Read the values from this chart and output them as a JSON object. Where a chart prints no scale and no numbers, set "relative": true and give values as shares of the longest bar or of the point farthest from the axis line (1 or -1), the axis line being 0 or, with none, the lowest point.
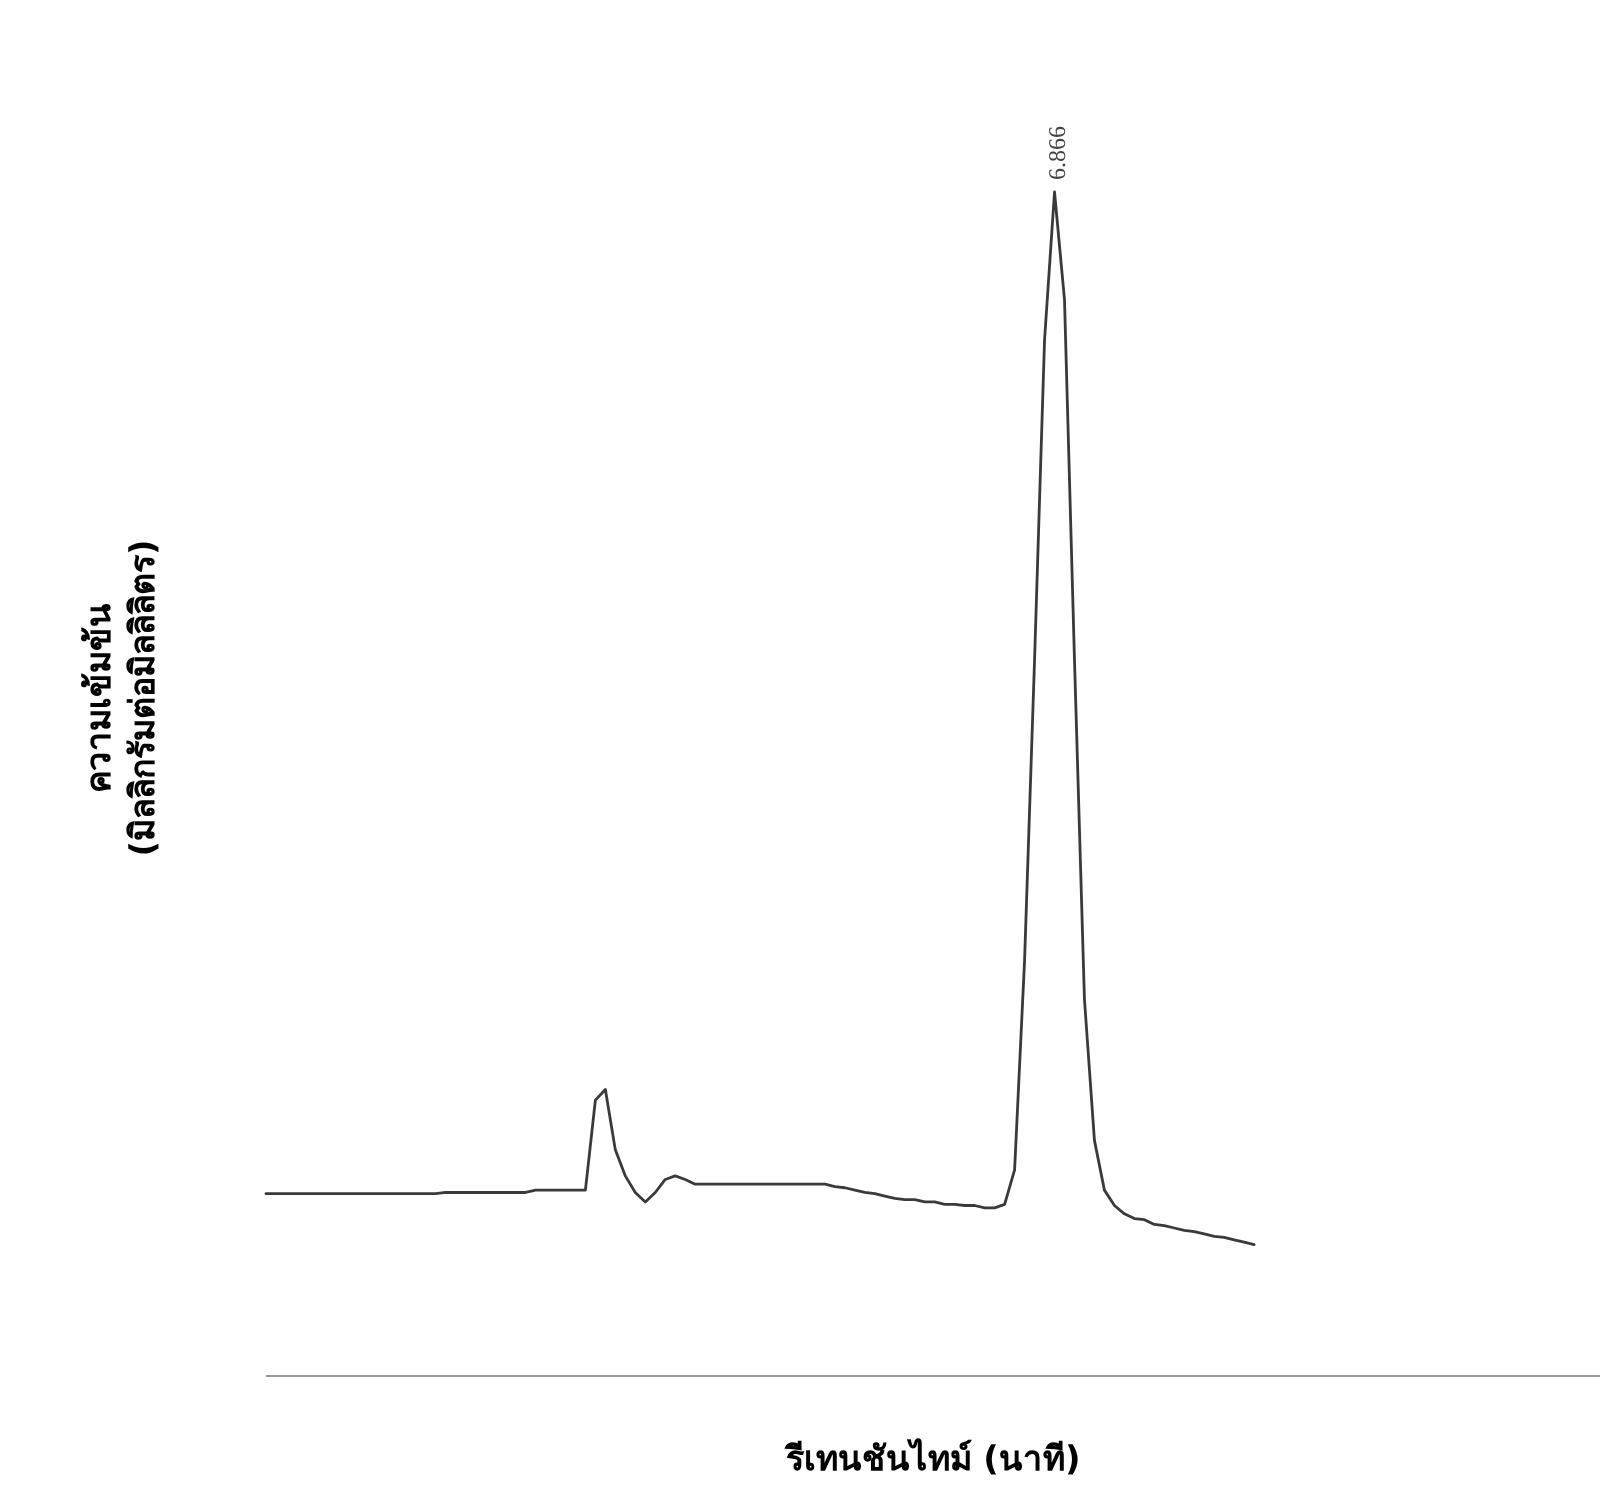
{
  "chart_data": {
    "type": "line",
    "relative": true,
    "marker": "none",
    "line_style": "solid",
    "xlabel": "รีเทนชันไทม์ (นาที)",
    "ylabel": "ความเข้มข้น\n(มิลลิกรัมต่อมิลลิลิตร)",
    "annotations": [
      "6.866"
    ],
    "categories": [
      null,
      null,
      null,
      null,
      null,
      null,
      null,
      null,
      null,
      null,
      null,
      null,
      null,
      null,
      null,
      null,
      null,
      null,
      null,
      null,
      null,
      null,
      null,
      null,
      null,
      null,
      null,
      null,
      null,
      null,
      null,
      null,
      null,
      null,
      null,
      null,
      null,
      null,
      null,
      null,
      null,
      null,
      null,
      null,
      null,
      null,
      null,
      null,
      null,
      null,
      null,
      null,
      null,
      null,
      null,
      null,
      null,
      null,
      null,
      null,
      null,
      null,
      null,
      null,
      null,
      null,
      null,
      null,
      null,
      null,
      null,
      null,
      null,
      null,
      null,
      null,
      null,
      null,
      null,
      null,
      null,
      null,
      null,
      null,
      null,
      null,
      null,
      null,
      null,
      null,
      null,
      null,
      null,
      null,
      null,
      null,
      null,
      null,
      null,
      null
    ],
    "series": [
      {
        "color": "#3a3a3a",
        "values": [
          0.154,
          0.154,
          0.154,
          0.154,
          0.154,
          0.154,
          0.154,
          0.154,
          0.154,
          0.154,
          0.154,
          0.154,
          0.154,
          0.154,
          0.154,
          0.154,
          0.154,
          0.154,
          0.155,
          0.155,
          0.155,
          0.155,
          0.155,
          0.155,
          0.155,
          0.155,
          0.155,
          0.157,
          0.157,
          0.157,
          0.157,
          0.157,
          0.157,
          0.233,
          0.242,
          0.191,
          0.169,
          0.155,
          0.147,
          0.155,
          0.166,
          0.169,
          0.166,
          0.162,
          0.162,
          0.162,
          0.162,
          0.162,
          0.162,
          0.162,
          0.162,
          0.162,
          0.162,
          0.162,
          0.162,
          0.162,
          0.162,
          0.16,
          0.159,
          0.157,
          0.155,
          0.154,
          0.152,
          0.15,
          0.149,
          0.149,
          0.147,
          0.147,
          0.145,
          0.145,
          0.144,
          0.144,
          0.142,
          0.142,
          0.145,
          0.174,
          0.351,
          0.605,
          0.875,
          1,
          0.909,
          0.605,
          0.318,
          0.199,
          0.157,
          0.144,
          0.137,
          0.133,
          0.132,
          0.128,
          0.127,
          0.125,
          0.123,
          0.122,
          0.12,
          0.118,
          0.117,
          0.115,
          0.113,
          0.111
        ]
      }
    ]
  }
}
